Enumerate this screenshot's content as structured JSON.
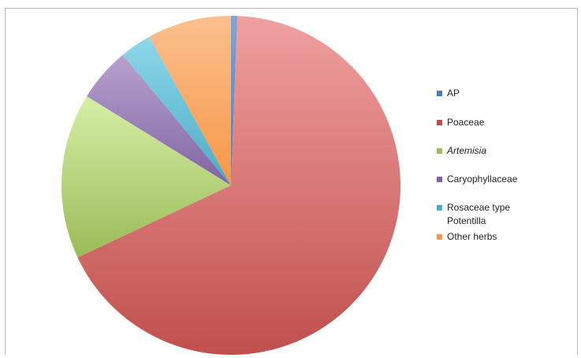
{
  "chart_data": {
    "type": "pie",
    "labels": [
      "AP",
      "Poaceae",
      "Artemisia",
      "Caryophyllaceae",
      "Rosaceae type\nPotentilla",
      "Other herbs"
    ],
    "values": [
      0.6,
      67.4,
      15.8,
      5.2,
      3.0,
      8.0
    ],
    "start_angle_deg": 0,
    "direction": "clockwise",
    "legend_position": "right",
    "colors": [
      "#4a7ebb",
      "#c0504d",
      "#9bbb59",
      "#8064a2",
      "#4bacc6",
      "#f79646"
    ],
    "colors_light": [
      "#7fa6d8",
      "#f0a0a0",
      "#d6efa6",
      "#b7a3cf",
      "#8ed7ea",
      "#fbc08f"
    ],
    "italic_labels": [
      "Artemisia"
    ]
  }
}
